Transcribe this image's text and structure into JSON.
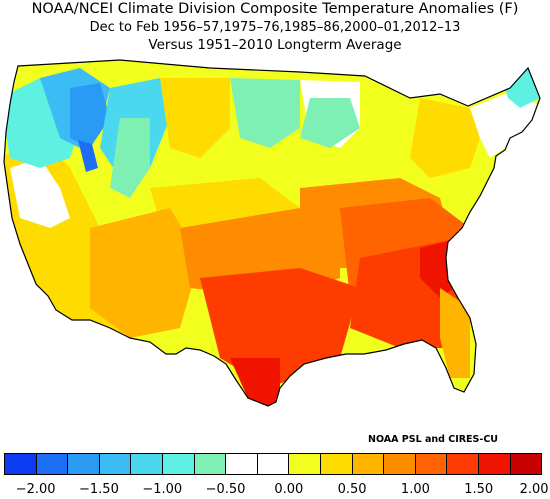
{
  "title": {
    "line1": "NOAA/NCEI Climate Division Composite Temperature Anomalies (F)",
    "line2": "Dec to Feb  1956–57,1975–76,1985–86,2000–01,2012–13",
    "line3": "Versus 1951–2010 Longterm Average"
  },
  "credit": "NOAA PSL and CIRES-CU",
  "colorbar": {
    "colors": [
      "#0a3cf0",
      "#1e6ef5",
      "#2a9af5",
      "#3cbcf5",
      "#4ad8ee",
      "#5ef0e0",
      "#7ef0b4",
      "#ffffff",
      "#ffffff",
      "#f2ff1e",
      "#ffdc00",
      "#ffb400",
      "#ff8c00",
      "#ff6400",
      "#ff3c00",
      "#f01400",
      "#c80000"
    ],
    "tick_labels": [
      "−2.00",
      "−1.50",
      "−1.00",
      "−0.50",
      "0.00",
      "0.50",
      "1.00",
      "1.50",
      "2.00"
    ]
  },
  "map": {
    "colors": {
      "cold2": "#2a9af5",
      "cold3": "#3cbcf5",
      "cold4": "#4ad8ee",
      "cold5": "#5ef0e0",
      "cold6": "#7ef0b4",
      "blue_dark": "#1e6ef5",
      "neutral": "#ffffff",
      "w1": "#f2ff1e",
      "w2": "#ffdc00",
      "w3": "#ffb400",
      "w4": "#ff8c00",
      "w5": "#ff6400",
      "w6": "#ff3c00",
      "w7": "#f01400"
    }
  }
}
